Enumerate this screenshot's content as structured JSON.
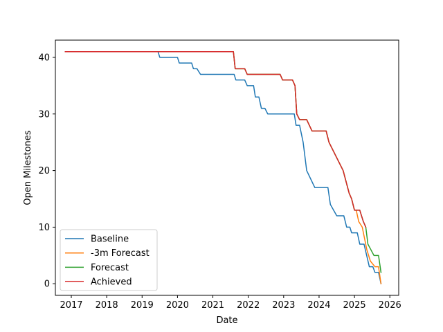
{
  "chart_data": {
    "type": "line",
    "title": "",
    "xlabel": "Date",
    "ylabel": "Open Milestones",
    "xlim": [
      2016.55,
      2026.25
    ],
    "ylim": [
      -2.05,
      43.05
    ],
    "xticks": [
      2017,
      2018,
      2019,
      2020,
      2021,
      2022,
      2023,
      2024,
      2025,
      2026
    ],
    "yticks": [
      0,
      10,
      20,
      30,
      40
    ],
    "grid": false,
    "legend_position": "lower-left",
    "series": [
      {
        "name": "Baseline",
        "color": "#1f77b4",
        "points": [
          [
            2016.83,
            41
          ],
          [
            2019.45,
            41
          ],
          [
            2019.5,
            40
          ],
          [
            2020.0,
            40
          ],
          [
            2020.05,
            39
          ],
          [
            2020.4,
            39
          ],
          [
            2020.45,
            38
          ],
          [
            2020.55,
            38
          ],
          [
            2020.65,
            37
          ],
          [
            2021.6,
            37
          ],
          [
            2021.65,
            36
          ],
          [
            2021.9,
            36
          ],
          [
            2021.97,
            35
          ],
          [
            2022.15,
            35
          ],
          [
            2022.2,
            33
          ],
          [
            2022.3,
            33
          ],
          [
            2022.37,
            31
          ],
          [
            2022.47,
            31
          ],
          [
            2022.55,
            30
          ],
          [
            2023.3,
            30
          ],
          [
            2023.35,
            28
          ],
          [
            2023.45,
            28
          ],
          [
            2023.55,
            25
          ],
          [
            2023.65,
            20
          ],
          [
            2023.88,
            17
          ],
          [
            2024.25,
            17
          ],
          [
            2024.32,
            14
          ],
          [
            2024.5,
            12
          ],
          [
            2024.7,
            12
          ],
          [
            2024.78,
            10
          ],
          [
            2024.87,
            10
          ],
          [
            2024.92,
            9
          ],
          [
            2025.08,
            9
          ],
          [
            2025.15,
            7
          ],
          [
            2025.27,
            7
          ],
          [
            2025.42,
            3
          ],
          [
            2025.52,
            3
          ],
          [
            2025.58,
            2
          ],
          [
            2025.68,
            2
          ],
          [
            2025.75,
            0
          ]
        ]
      },
      {
        "name": "-3m Forecast",
        "color": "#ff7f0e",
        "points": [
          [
            2016.83,
            41
          ],
          [
            2021.58,
            41
          ],
          [
            2021.63,
            38
          ],
          [
            2021.9,
            38
          ],
          [
            2021.97,
            37
          ],
          [
            2022.9,
            37
          ],
          [
            2022.97,
            36
          ],
          [
            2023.25,
            36
          ],
          [
            2023.32,
            35
          ],
          [
            2023.37,
            30
          ],
          [
            2023.45,
            29
          ],
          [
            2023.65,
            29
          ],
          [
            2023.8,
            27
          ],
          [
            2024.2,
            27
          ],
          [
            2024.28,
            25
          ],
          [
            2024.68,
            20
          ],
          [
            2024.85,
            16
          ],
          [
            2024.92,
            15
          ],
          [
            2025.0,
            13
          ],
          [
            2025.05,
            13
          ],
          [
            2025.12,
            11
          ],
          [
            2025.22,
            10
          ],
          [
            2025.35,
            6
          ],
          [
            2025.45,
            4
          ],
          [
            2025.58,
            3
          ],
          [
            2025.68,
            3
          ],
          [
            2025.75,
            0
          ]
        ]
      },
      {
        "name": "Forecast",
        "color": "#2ca02c",
        "points": [
          [
            2016.83,
            41
          ],
          [
            2021.58,
            41
          ],
          [
            2021.63,
            38
          ],
          [
            2021.9,
            38
          ],
          [
            2021.97,
            37
          ],
          [
            2022.9,
            37
          ],
          [
            2022.97,
            36
          ],
          [
            2023.25,
            36
          ],
          [
            2023.32,
            35
          ],
          [
            2023.37,
            30
          ],
          [
            2023.45,
            29
          ],
          [
            2023.65,
            29
          ],
          [
            2023.8,
            27
          ],
          [
            2024.2,
            27
          ],
          [
            2024.28,
            25
          ],
          [
            2024.68,
            20
          ],
          [
            2024.85,
            16
          ],
          [
            2024.92,
            15
          ],
          [
            2025.0,
            13
          ],
          [
            2025.15,
            13
          ],
          [
            2025.25,
            11
          ],
          [
            2025.32,
            10
          ],
          [
            2025.38,
            7
          ],
          [
            2025.55,
            5
          ],
          [
            2025.68,
            5
          ],
          [
            2025.75,
            2
          ]
        ]
      },
      {
        "name": "Achieved",
        "color": "#d62728",
        "points": [
          [
            2016.83,
            41
          ],
          [
            2021.58,
            41
          ],
          [
            2021.63,
            38
          ],
          [
            2021.9,
            38
          ],
          [
            2021.97,
            37
          ],
          [
            2022.9,
            37
          ],
          [
            2022.97,
            36
          ],
          [
            2023.25,
            36
          ],
          [
            2023.32,
            35
          ],
          [
            2023.37,
            30
          ],
          [
            2023.45,
            29
          ],
          [
            2023.65,
            29
          ],
          [
            2023.8,
            27
          ],
          [
            2024.2,
            27
          ],
          [
            2024.28,
            25
          ],
          [
            2024.68,
            20
          ],
          [
            2024.85,
            16
          ],
          [
            2024.92,
            15
          ],
          [
            2025.0,
            13
          ],
          [
            2025.15,
            13
          ],
          [
            2025.25,
            11
          ],
          [
            2025.32,
            10
          ]
        ]
      }
    ]
  }
}
